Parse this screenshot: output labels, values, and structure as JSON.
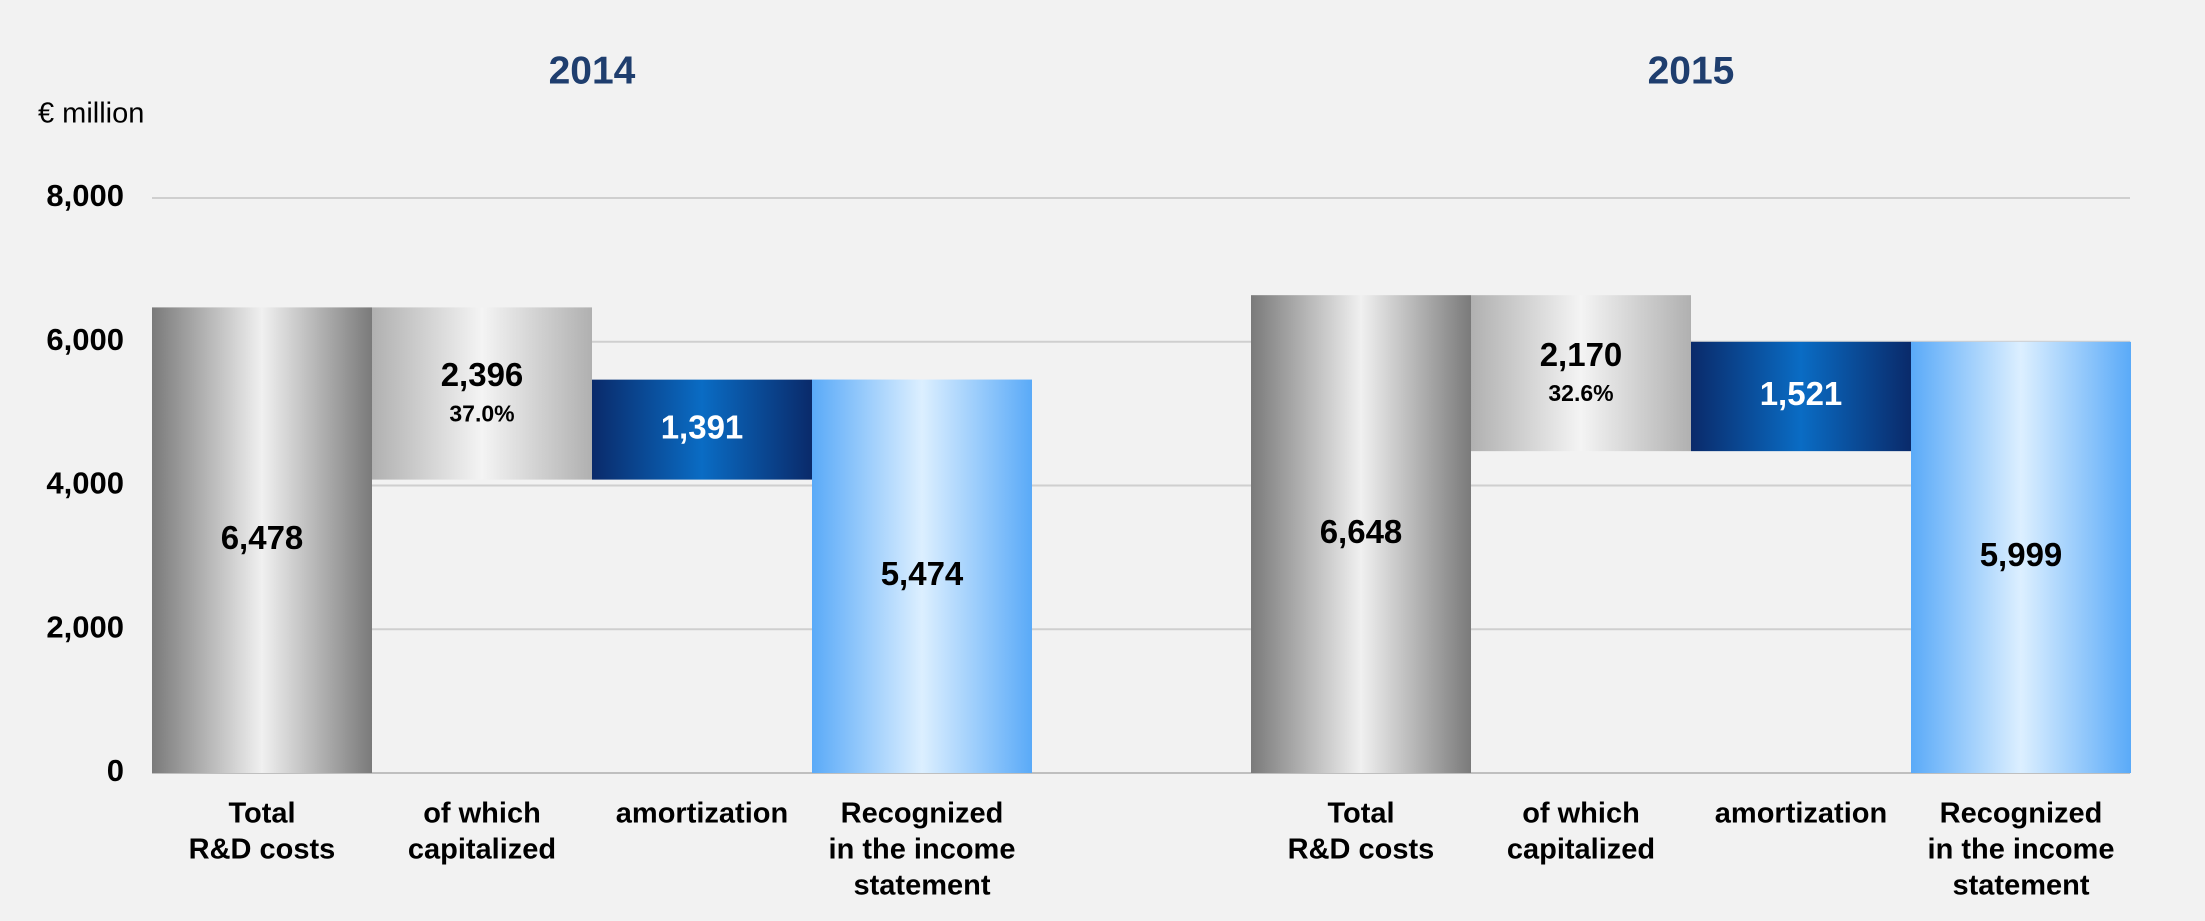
{
  "chart_data": {
    "type": "waterfall",
    "y_label": "€ million",
    "ylim": [
      0,
      8000
    ],
    "yticks": [
      0,
      {
        "value": 2000,
        "label": "2,000"
      },
      {
        "value": 4000,
        "label": "4,000"
      },
      {
        "value": 6000,
        "label": "6,000"
      },
      {
        "value": 8000,
        "label": "8,000"
      }
    ],
    "grid": true,
    "kinds": [
      "total",
      "decrease",
      "increase",
      "total"
    ],
    "colors": [
      [
        "#7a7a7a",
        "#f0f0f0",
        "#7a7a7a"
      ],
      [
        "#b0b0b0",
        "#f4f4f4",
        "#b0b0b0"
      ],
      [
        "#0a2a6a",
        "#0a6cc4",
        "#0a2a6a"
      ],
      [
        "#5aaaf8",
        "#dcefff",
        "#5aaaf8"
      ]
    ],
    "label_colors": [
      "#000000",
      "#000000",
      "#ffffff",
      "#000000"
    ],
    "categories": [
      [
        "Total",
        "R&D costs"
      ],
      [
        "of which",
        "capitalized"
      ],
      [
        "amortization"
      ],
      [
        "Recognized",
        "in the income",
        "statement"
      ]
    ],
    "groups": [
      {
        "title": "2014",
        "values": [
          6478,
          2396,
          1391,
          5474
        ],
        "value_labels": [
          "6,478",
          "2,396",
          "1,391",
          "5,474"
        ],
        "share_label": "37.0%"
      },
      {
        "title": "2015",
        "values": [
          6648,
          2170,
          1521,
          5999
        ],
        "value_labels": [
          "6,648",
          "2,170",
          "1,521",
          "5,999"
        ],
        "share_label": "32.6%"
      }
    ]
  }
}
